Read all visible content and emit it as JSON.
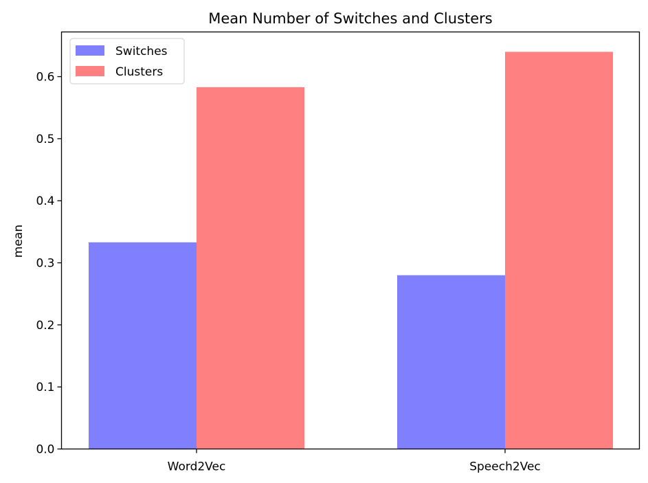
{
  "chart_data": {
    "type": "bar",
    "title": "Mean Number of Switches and Clusters",
    "xlabel": "",
    "ylabel": "mean",
    "categories": [
      "Word2Vec",
      "Speech2Vec"
    ],
    "series": [
      {
        "name": "Switches",
        "values": [
          0.333,
          0.28
        ],
        "color": "#8080ff"
      },
      {
        "name": "Clusters",
        "values": [
          0.583,
          0.64
        ],
        "color": "#ff8080"
      }
    ],
    "ylim": [
      0,
      0.672
    ],
    "yticks": [
      0.0,
      0.1,
      0.2,
      0.3,
      0.4,
      0.5,
      0.6
    ],
    "ytick_labels": [
      "0.0",
      "0.1",
      "0.2",
      "0.3",
      "0.4",
      "0.5",
      "0.6"
    ],
    "grid": false,
    "legend": "upper-left"
  }
}
